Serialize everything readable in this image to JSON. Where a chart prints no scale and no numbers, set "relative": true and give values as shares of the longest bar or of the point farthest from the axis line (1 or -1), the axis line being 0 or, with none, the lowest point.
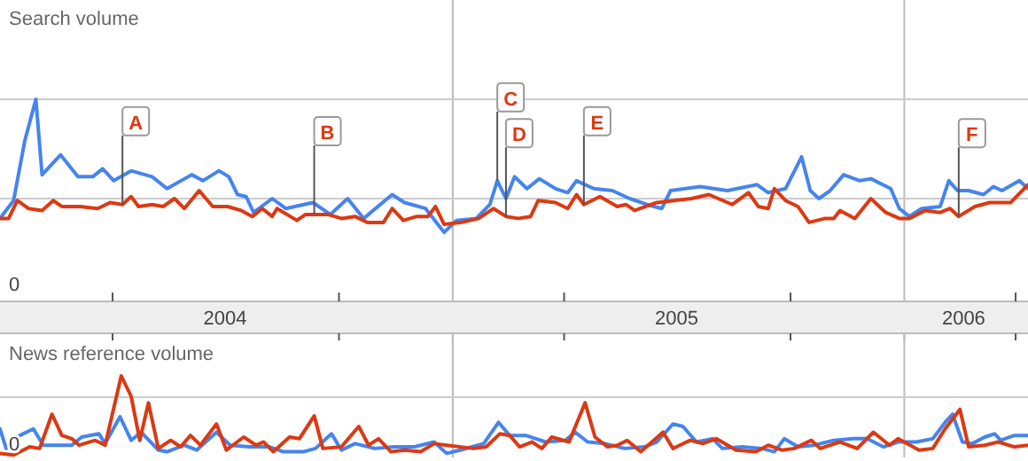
{
  "chart_data": [
    {
      "type": "line",
      "title": "Search volume",
      "relative": true,
      "xlim": [
        "2004-01-01",
        "2006-04-11"
      ],
      "xticks": [
        {
          "value": "2004-04-01",
          "label": null
        },
        {
          "value": "2004-07-01",
          "label": "2004"
        },
        {
          "value": "2004-10-01",
          "label": null
        },
        {
          "value": "2005-04-01",
          "label": null
        },
        {
          "value": "2005-07-01",
          "label": "2005"
        },
        {
          "value": "2005-10-01",
          "label": null
        },
        {
          "value": "2006-02-18",
          "label": "2006"
        },
        {
          "value": "2006-04-01",
          "label": null
        }
      ],
      "ref_lines": [
        {
          "axis": "x",
          "value": "2005-01-01"
        },
        {
          "axis": "x",
          "value": "2006-01-01"
        },
        {
          "axis": "y",
          "value": 0.5
        },
        {
          "axis": "y",
          "value": 1
        }
      ],
      "series": [
        {
          "color": "#4684ee",
          "x": [
            "2004-01-01",
            "2004-01-12",
            "2004-01-21",
            "2004-01-30",
            "2004-02-04",
            "2004-02-19",
            "2004-03-04",
            "2004-03-16",
            "2004-03-24",
            "2004-04-02",
            "2004-04-16",
            "2004-05-03",
            "2004-05-15",
            "2004-06-04",
            "2004-06-13",
            "2004-06-26",
            "2004-07-04",
            "2004-07-11",
            "2004-07-18",
            "2004-07-24",
            "2004-08-08",
            "2004-08-19",
            "2004-09-10",
            "2004-09-24",
            "2004-10-08",
            "2004-10-21",
            "2004-11-13",
            "2004-11-23",
            "2004-12-10",
            "2004-12-25",
            "2005-01-04",
            "2005-01-20",
            "2005-01-31",
            "2005-02-06",
            "2005-02-13",
            "2005-02-20",
            "2005-03-02",
            "2005-03-12",
            "2005-03-25",
            "2005-04-04",
            "2005-04-11",
            "2005-04-25",
            "2005-05-10",
            "2005-05-24",
            "2005-06-07",
            "2005-06-19",
            "2005-06-26",
            "2005-07-20",
            "2005-08-11",
            "2005-09-04",
            "2005-09-13",
            "2005-09-27",
            "2005-10-10",
            "2005-10-17",
            "2005-10-24",
            "2005-11-02",
            "2005-11-13",
            "2005-11-26",
            "2005-12-05",
            "2005-12-21",
            "2005-12-28",
            "2006-01-05",
            "2006-01-15",
            "2006-01-30",
            "2006-02-06",
            "2006-02-13",
            "2006-02-22",
            "2006-03-06",
            "2006-03-14",
            "2006-03-21",
            "2006-04-04",
            "2006-04-11"
          ],
          "values": [
            0.4,
            0.49,
            0.79,
            1.0,
            0.62,
            0.72,
            0.61,
            0.61,
            0.65,
            0.59,
            0.64,
            0.61,
            0.55,
            0.62,
            0.59,
            0.64,
            0.61,
            0.52,
            0.51,
            0.43,
            0.5,
            0.45,
            0.48,
            0.42,
            0.5,
            0.4,
            0.52,
            0.48,
            0.45,
            0.33,
            0.39,
            0.4,
            0.47,
            0.59,
            0.5,
            0.61,
            0.55,
            0.6,
            0.55,
            0.53,
            0.59,
            0.55,
            0.54,
            0.5,
            0.47,
            0.45,
            0.54,
            0.56,
            0.54,
            0.57,
            0.53,
            0.55,
            0.71,
            0.54,
            0.5,
            0.54,
            0.62,
            0.59,
            0.6,
            0.55,
            0.45,
            0.41,
            0.45,
            0.46,
            0.59,
            0.54,
            0.54,
            0.52,
            0.56,
            0.54,
            0.59,
            0.55
          ]
        },
        {
          "color": "#dc3912",
          "x": [
            "2004-01-01",
            "2004-01-08",
            "2004-01-15",
            "2004-01-24",
            "2004-02-04",
            "2004-02-13",
            "2004-02-20",
            "2004-03-06",
            "2004-03-20",
            "2004-03-30",
            "2004-04-09",
            "2004-04-16",
            "2004-04-22",
            "2004-05-03",
            "2004-05-12",
            "2004-05-21",
            "2004-05-29",
            "2004-06-10",
            "2004-06-21",
            "2004-07-03",
            "2004-07-14",
            "2004-07-23",
            "2004-07-31",
            "2004-08-08",
            "2004-08-12",
            "2004-08-28",
            "2004-09-04",
            "2004-09-22",
            "2004-10-03",
            "2004-10-14",
            "2004-10-24",
            "2004-11-06",
            "2004-11-13",
            "2004-11-22",
            "2004-12-03",
            "2004-12-12",
            "2004-12-18",
            "2004-12-25",
            "2005-01-08",
            "2005-01-22",
            "2005-02-03",
            "2005-02-13",
            "2005-02-23",
            "2005-03-05",
            "2005-03-11",
            "2005-03-25",
            "2005-04-04",
            "2005-04-11",
            "2005-04-17",
            "2005-04-30",
            "2005-05-14",
            "2005-05-21",
            "2005-05-28",
            "2005-06-15",
            "2005-06-29",
            "2005-07-13",
            "2005-07-27",
            "2005-08-15",
            "2005-08-28",
            "2005-09-05",
            "2005-09-13",
            "2005-09-18",
            "2005-09-27",
            "2005-10-07",
            "2005-10-16",
            "2005-10-29",
            "2005-11-05",
            "2005-11-10",
            "2005-11-22",
            "2005-12-05",
            "2005-12-17",
            "2005-12-28",
            "2006-01-05",
            "2006-01-18",
            "2006-01-30",
            "2006-02-07",
            "2006-02-14",
            "2006-02-27",
            "2006-03-11",
            "2006-03-28",
            "2006-04-11"
          ],
          "values": [
            0.4,
            0.4,
            0.49,
            0.45,
            0.44,
            0.49,
            0.46,
            0.46,
            0.45,
            0.48,
            0.47,
            0.51,
            0.46,
            0.47,
            0.46,
            0.5,
            0.45,
            0.54,
            0.46,
            0.46,
            0.44,
            0.41,
            0.45,
            0.41,
            0.45,
            0.39,
            0.42,
            0.42,
            0.4,
            0.41,
            0.38,
            0.38,
            0.45,
            0.39,
            0.41,
            0.41,
            0.46,
            0.37,
            0.38,
            0.4,
            0.45,
            0.41,
            0.4,
            0.41,
            0.49,
            0.48,
            0.45,
            0.52,
            0.47,
            0.51,
            0.46,
            0.47,
            0.44,
            0.48,
            0.49,
            0.5,
            0.52,
            0.47,
            0.53,
            0.46,
            0.45,
            0.55,
            0.49,
            0.46,
            0.38,
            0.4,
            0.4,
            0.44,
            0.4,
            0.5,
            0.43,
            0.4,
            0.4,
            0.44,
            0.43,
            0.45,
            0.41,
            0.46,
            0.48,
            0.48,
            0.57
          ]
        }
      ],
      "annotations": [
        "0",
        {
          "text": "A",
          "x": "2004-04-09",
          "y": 0.47
        },
        {
          "text": "B",
          "x": "2004-09-11",
          "y": 0.42
        },
        {
          "text": "C",
          "x": "2005-02-06",
          "y": 0.59
        },
        {
          "text": "D",
          "x": "2005-02-13",
          "y": 0.41
        },
        {
          "text": "E",
          "x": "2005-04-17",
          "y": 0.47
        },
        {
          "text": "F",
          "x": "2006-02-14",
          "y": 0.41
        }
      ]
    },
    {
      "type": "line",
      "title": "News reference volume",
      "relative": true,
      "xlim": [
        "2004-01-01",
        "2006-04-11"
      ],
      "annotations": [
        "0"
      ],
      "ref_lines": [
        {
          "axis": "x",
          "value": "2005-01-01"
        },
        {
          "axis": "x",
          "value": "2006-01-01"
        },
        {
          "axis": "y",
          "value": 0.74
        }
      ],
      "series": [
        {
          "color": "#4684ee",
          "x": [
            "2004-01-01",
            "2004-01-06",
            "2004-01-17",
            "2004-01-28",
            "2004-02-05",
            "2004-02-18",
            "2004-02-28",
            "2004-03-07",
            "2004-03-21",
            "2004-03-26",
            "2004-04-07",
            "2004-04-16",
            "2004-04-24",
            "2004-05-08",
            "2004-05-15",
            "2004-05-29",
            "2004-06-08",
            "2004-06-24",
            "2004-07-05",
            "2004-07-21",
            "2004-08-06",
            "2004-08-17",
            "2004-09-02",
            "2004-09-12",
            "2004-09-25",
            "2004-10-03",
            "2004-10-14",
            "2004-10-30",
            "2004-11-15",
            "2004-12-01",
            "2004-12-17",
            "2004-12-27",
            "2005-01-07",
            "2005-01-26",
            "2005-02-07",
            "2005-02-16",
            "2005-03-01",
            "2005-03-17",
            "2005-04-02",
            "2005-04-10",
            "2005-04-20",
            "2005-05-04",
            "2005-05-20",
            "2005-06-05",
            "2005-06-15",
            "2005-06-28",
            "2005-07-06",
            "2005-07-17",
            "2005-07-30",
            "2005-08-07",
            "2005-08-23",
            "2005-09-08",
            "2005-09-18",
            "2005-09-26",
            "2005-10-07",
            "2005-10-20",
            "2005-11-05",
            "2005-11-21",
            "2005-12-02",
            "2005-12-15",
            "2005-12-27",
            "2006-01-11",
            "2006-01-24",
            "2006-02-03",
            "2006-02-09",
            "2006-02-17",
            "2006-02-25",
            "2006-03-07",
            "2006-03-15",
            "2006-03-20",
            "2006-03-31",
            "2006-04-11"
          ],
          "values": [
            0.35,
            0.11,
            0.27,
            0.35,
            0.15,
            0.15,
            0.15,
            0.25,
            0.29,
            0.17,
            0.5,
            0.21,
            0.31,
            0.09,
            0.07,
            0.15,
            0.09,
            0.31,
            0.15,
            0.13,
            0.13,
            0.07,
            0.07,
            0.11,
            0.29,
            0.09,
            0.17,
            0.11,
            0.13,
            0.13,
            0.19,
            0.05,
            0.09,
            0.17,
            0.43,
            0.27,
            0.27,
            0.19,
            0.21,
            0.31,
            0.19,
            0.17,
            0.11,
            0.13,
            0.19,
            0.41,
            0.38,
            0.19,
            0.23,
            0.11,
            0.13,
            0.11,
            0.07,
            0.23,
            0.13,
            0.15,
            0.21,
            0.23,
            0.23,
            0.13,
            0.19,
            0.19,
            0.23,
            0.43,
            0.53,
            0.19,
            0.17,
            0.25,
            0.29,
            0.21,
            0.27,
            0.27
          ]
        },
        {
          "color": "#dc3912",
          "x": [
            "2004-01-01",
            "2004-01-12",
            "2004-01-25",
            "2004-02-02",
            "2004-02-12",
            "2004-02-20",
            "2004-02-28",
            "2004-03-05",
            "2004-03-18",
            "2004-03-26",
            "2004-04-08",
            "2004-04-16",
            "2004-04-23",
            "2004-04-30",
            "2004-05-08",
            "2004-05-18",
            "2004-05-26",
            "2004-06-03",
            "2004-06-11",
            "2004-06-24",
            "2004-07-02",
            "2004-07-16",
            "2004-07-26",
            "2004-08-01",
            "2004-08-09",
            "2004-08-22",
            "2004-08-30",
            "2004-09-11",
            "2004-09-18",
            "2004-10-03",
            "2004-10-17",
            "2004-10-25",
            "2004-11-02",
            "2004-11-12",
            "2004-11-23",
            "2004-12-06",
            "2004-12-17",
            "2004-12-27",
            "2005-01-18",
            "2005-01-28",
            "2005-02-08",
            "2005-02-16",
            "2005-02-24",
            "2005-03-06",
            "2005-03-14",
            "2005-03-22",
            "2005-04-05",
            "2005-04-18",
            "2005-04-26",
            "2005-05-06",
            "2005-05-14",
            "2005-05-22",
            "2005-06-02",
            "2005-06-20",
            "2005-06-28",
            "2005-07-12",
            "2005-07-22",
            "2005-08-02",
            "2005-08-18",
            "2005-09-03",
            "2005-09-13",
            "2005-09-24",
            "2005-10-04",
            "2005-10-18",
            "2005-10-25",
            "2005-11-10",
            "2005-11-24",
            "2005-12-07",
            "2005-12-20",
            "2005-12-27",
            "2006-01-13",
            "2006-01-24",
            "2006-02-03",
            "2006-02-15",
            "2006-02-22",
            "2006-03-07",
            "2006-03-18",
            "2006-03-31",
            "2006-04-11"
          ],
          "values": [
            0.05,
            0.03,
            0.13,
            0.11,
            0.53,
            0.27,
            0.23,
            0.15,
            0.21,
            0.15,
            1.0,
            0.75,
            0.21,
            0.67,
            0.11,
            0.21,
            0.13,
            0.27,
            0.15,
            0.41,
            0.09,
            0.25,
            0.15,
            0.19,
            0.07,
            0.25,
            0.23,
            0.51,
            0.11,
            0.13,
            0.38,
            0.15,
            0.23,
            0.07,
            0.09,
            0.07,
            0.17,
            0.15,
            0.11,
            0.13,
            0.29,
            0.27,
            0.13,
            0.19,
            0.11,
            0.25,
            0.19,
            0.67,
            0.25,
            0.13,
            0.15,
            0.21,
            0.07,
            0.31,
            0.11,
            0.21,
            0.17,
            0.23,
            0.09,
            0.07,
            0.15,
            0.09,
            0.11,
            0.21,
            0.11,
            0.19,
            0.11,
            0.31,
            0.15,
            0.23,
            0.09,
            0.11,
            0.35,
            0.59,
            0.13,
            0.15,
            0.19,
            0.13,
            0.15
          ]
        }
      ]
    }
  ]
}
